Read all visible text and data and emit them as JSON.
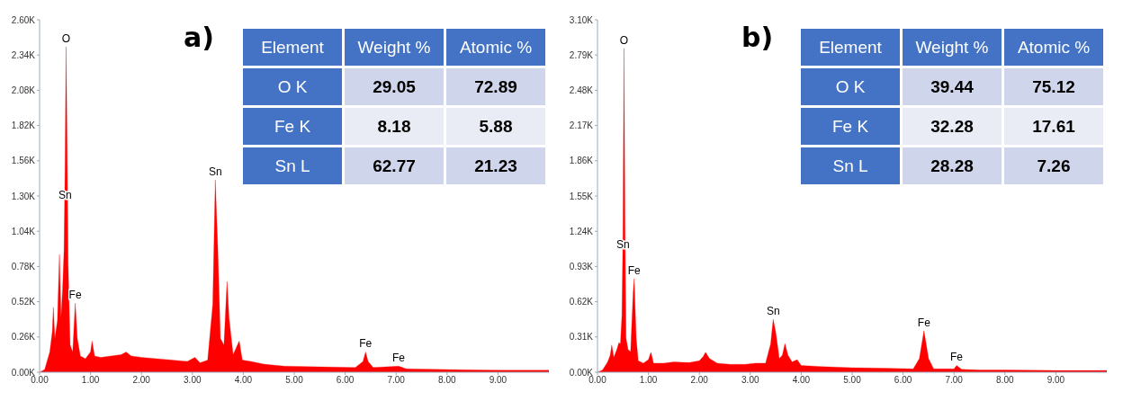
{
  "chart_data": [
    {
      "type": "area",
      "title": "a)",
      "color": "#ff0000",
      "grid": false,
      "x": [
        0.0,
        0.1,
        0.2,
        0.25,
        0.27,
        0.3,
        0.35,
        0.39,
        0.42,
        0.45,
        0.48,
        0.5,
        0.52,
        0.54,
        0.56,
        0.6,
        0.65,
        0.7,
        0.74,
        0.8,
        0.9,
        1.0,
        1.03,
        1.08,
        1.2,
        1.4,
        1.6,
        1.7,
        1.8,
        2.0,
        2.3,
        2.6,
        2.9,
        3.05,
        3.15,
        3.3,
        3.4,
        3.45,
        3.5,
        3.55,
        3.62,
        3.68,
        3.72,
        3.8,
        3.92,
        3.98,
        4.15,
        4.4,
        4.8,
        5.5,
        6.2,
        6.35,
        6.4,
        6.45,
        6.55,
        7.05,
        7.2,
        8.0,
        9.0,
        10.0
      ],
      "values": [
        0,
        20,
        150,
        300,
        480,
        250,
        380,
        870,
        400,
        600,
        900,
        1500,
        2400,
        1700,
        800,
        200,
        150,
        510,
        250,
        120,
        100,
        150,
        230,
        120,
        110,
        120,
        130,
        150,
        120,
        110,
        100,
        90,
        80,
        110,
        70,
        90,
        500,
        1420,
        900,
        250,
        200,
        670,
        400,
        130,
        230,
        90,
        80,
        60,
        45,
        40,
        35,
        80,
        150,
        80,
        35,
        45,
        25,
        20,
        15,
        15
      ],
      "xlim": [
        0,
        10
      ],
      "ylim": [
        0,
        2600
      ],
      "xticks": [
        {
          "value": 0,
          "label": "0.00"
        },
        {
          "value": 1,
          "label": "1.00"
        },
        {
          "value": 2,
          "label": "2.00"
        },
        {
          "value": 3,
          "label": "3.00"
        },
        {
          "value": 4,
          "label": "4.00"
        },
        {
          "value": 5,
          "label": "5.00"
        },
        {
          "value": 6,
          "label": "6.00"
        },
        {
          "value": 7,
          "label": "7.00"
        },
        {
          "value": 8,
          "label": "8.00"
        },
        {
          "value": 9,
          "label": "9.00"
        }
      ],
      "yticks": [
        {
          "value": 0,
          "label": "0.00K"
        },
        {
          "value": 260,
          "label": "0.26K"
        },
        {
          "value": 520,
          "label": "0.52K"
        },
        {
          "value": 780,
          "label": "0.78K"
        },
        {
          "value": 1040,
          "label": "1.04K"
        },
        {
          "value": 1300,
          "label": "1.30K"
        },
        {
          "value": 1560,
          "label": "1.56K"
        },
        {
          "value": 1820,
          "label": "1.82K"
        },
        {
          "value": 2080,
          "label": "2.08K"
        },
        {
          "value": 2340,
          "label": "2.34K"
        },
        {
          "value": 2600,
          "label": "2.60K"
        }
      ],
      "annotations": [
        {
          "text": "O",
          "x": 0.52,
          "y": 2400
        },
        {
          "text": "Sn",
          "x": 0.5,
          "y": 1250
        },
        {
          "text": "Fe",
          "x": 0.7,
          "y": 510
        },
        {
          "text": "Sn",
          "x": 3.45,
          "y": 1420
        },
        {
          "text": "Fe",
          "x": 6.4,
          "y": 150
        },
        {
          "text": "Fe",
          "x": 7.05,
          "y": 45
        },
        "Element",
        "Weight %",
        "Atomic %",
        "O K",
        "29.05",
        "72.89",
        "Fe K",
        "8.18",
        "5.88",
        "Sn L",
        "62.77",
        "21.23"
      ]
    },
    {
      "type": "area",
      "title": "b)",
      "color": "#ff0000",
      "grid": false,
      "x": [
        0.0,
        0.1,
        0.2,
        0.25,
        0.28,
        0.32,
        0.38,
        0.42,
        0.45,
        0.48,
        0.5,
        0.52,
        0.54,
        0.56,
        0.6,
        0.65,
        0.7,
        0.72,
        0.76,
        0.8,
        0.9,
        1.0,
        1.05,
        1.1,
        1.3,
        1.5,
        1.8,
        2.0,
        2.08,
        2.12,
        2.2,
        2.35,
        2.6,
        2.9,
        3.1,
        3.3,
        3.4,
        3.45,
        3.5,
        3.57,
        3.63,
        3.68,
        3.74,
        3.82,
        3.92,
        4.0,
        4.4,
        5.0,
        5.6,
        6.2,
        6.32,
        6.41,
        6.5,
        6.6,
        7.0,
        7.05,
        7.15,
        7.5,
        8.0,
        9.0,
        10.0
      ],
      "values": [
        0,
        20,
        90,
        150,
        240,
        130,
        200,
        260,
        250,
        500,
        1200,
        2850,
        1300,
        300,
        200,
        180,
        700,
        825,
        300,
        100,
        80,
        110,
        175,
        80,
        80,
        90,
        85,
        100,
        140,
        175,
        120,
        80,
        70,
        70,
        80,
        80,
        250,
        466,
        350,
        120,
        150,
        252,
        150,
        90,
        110,
        60,
        50,
        40,
        35,
        30,
        120,
        366,
        120,
        30,
        30,
        60,
        25,
        20,
        20,
        15,
        15
      ],
      "xlim": [
        0,
        10
      ],
      "ylim": [
        0,
        3100
      ],
      "xticks": [
        {
          "value": 0,
          "label": "0.00"
        },
        {
          "value": 1,
          "label": "1.00"
        },
        {
          "value": 2,
          "label": "2.00"
        },
        {
          "value": 3,
          "label": "3.00"
        },
        {
          "value": 4,
          "label": "4.00"
        },
        {
          "value": 5,
          "label": "5.00"
        },
        {
          "value": 6,
          "label": "6.00"
        },
        {
          "value": 7,
          "label": "7.00"
        },
        {
          "value": 8,
          "label": "8.00"
        },
        {
          "value": 9,
          "label": "9.00"
        }
      ],
      "yticks": [
        {
          "value": 0,
          "label": "0.00K"
        },
        {
          "value": 310,
          "label": "0.31K"
        },
        {
          "value": 620,
          "label": "0.62K"
        },
        {
          "value": 930,
          "label": "0.93K"
        },
        {
          "value": 1240,
          "label": "1.24K"
        },
        {
          "value": 1550,
          "label": "1.55K"
        },
        {
          "value": 1860,
          "label": "1.86K"
        },
        {
          "value": 2170,
          "label": "2.17K"
        },
        {
          "value": 2480,
          "label": "2.48K"
        },
        {
          "value": 2790,
          "label": "2.79K"
        },
        {
          "value": 3100,
          "label": "3.10K"
        }
      ],
      "annotations": [
        {
          "text": "O",
          "x": 0.52,
          "y": 2850
        },
        {
          "text": "Sn",
          "x": 0.5,
          "y": 1050
        },
        {
          "text": "Fe",
          "x": 0.72,
          "y": 825
        },
        {
          "text": "Sn",
          "x": 3.45,
          "y": 466
        },
        {
          "text": "Fe",
          "x": 6.41,
          "y": 366
        },
        {
          "text": "Fe",
          "x": 7.05,
          "y": 60
        },
        "Element",
        "Weight %",
        "Atomic %",
        "O K",
        "39.44",
        "75.12",
        "Fe K",
        "32.28",
        "17.61",
        "Sn L",
        "28.28",
        "7.26"
      ]
    }
  ]
}
